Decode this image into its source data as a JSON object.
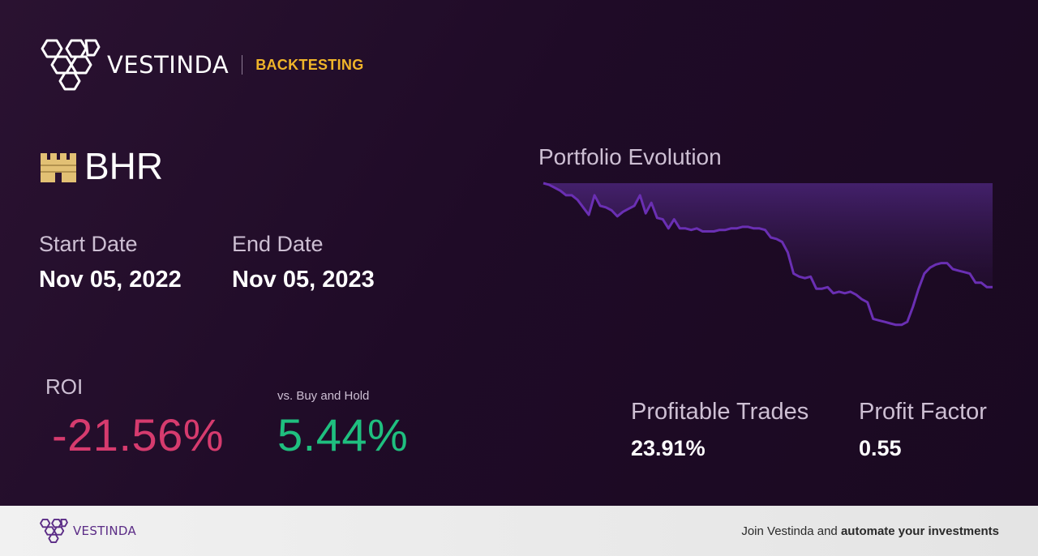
{
  "brand": {
    "name": "VESTINDA",
    "section": "BACKTESTING"
  },
  "ticker": {
    "symbol": "BHR",
    "icon": "castle-icon"
  },
  "dates": {
    "start_label": "Start Date",
    "start_value": "Nov 05, 2022",
    "end_label": "End Date",
    "end_value": "Nov 05, 2023"
  },
  "roi": {
    "label": "ROI",
    "value": "-21.56%"
  },
  "buy_hold": {
    "label": "vs. Buy and Hold",
    "value": "5.44%"
  },
  "stats": {
    "profitable_trades_label": "Profitable Trades",
    "profitable_trades_value": "23.91%",
    "profit_factor_label": "Profit Factor",
    "profit_factor_value": "0.55"
  },
  "footer": {
    "brand": "VESTINDA",
    "cta_prefix": "Join Vestinda and ",
    "cta_bold": "automate your investments"
  },
  "colors": {
    "accent": "#f0b429",
    "negative": "#d63b6e",
    "positive": "#1fbf7f",
    "line": "#6a2fb3"
  },
  "chart_data": {
    "type": "area",
    "title": "Portfolio Evolution",
    "xlabel": "",
    "ylabel": "",
    "axes_visible": false,
    "ylim": [
      0,
      100
    ],
    "series": [
      {
        "values": [
          100,
          99,
          97,
          95,
          92,
          92,
          89,
          84,
          79,
          92,
          85,
          84,
          82,
          78,
          81,
          83,
          85,
          92,
          80,
          87,
          77,
          76,
          70,
          76,
          70,
          70,
          69,
          70,
          68,
          68,
          68,
          69,
          69,
          70,
          70,
          71,
          71,
          70,
          70,
          69,
          64,
          63,
          61,
          54,
          40,
          38,
          37,
          38,
          30,
          30,
          31,
          27,
          28,
          27,
          28,
          26,
          23,
          21,
          10,
          9,
          8,
          7,
          6,
          6,
          8,
          18,
          30,
          40,
          44,
          46,
          47,
          47,
          43,
          42,
          41,
          40,
          34,
          34,
          31,
          31
        ]
      }
    ]
  }
}
